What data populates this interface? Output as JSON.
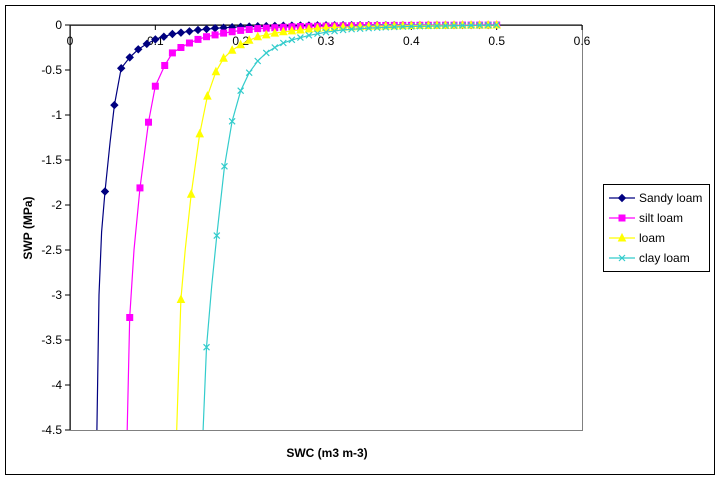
{
  "chart_data": {
    "type": "line",
    "title": "",
    "xlabel": "SWC (m3 m-3)",
    "ylabel": "SWP (MPa)",
    "xlim": [
      0,
      0.6
    ],
    "ylim": [
      -4.5,
      0
    ],
    "x_ticks": [
      "0",
      "0.1",
      "0.2",
      "0.3",
      "0.4",
      "0.5",
      "0.6"
    ],
    "y_ticks": [
      "0",
      "-0.5",
      "-1",
      "-1.5",
      "-2",
      "-2.5",
      "-3",
      "-3.5",
      "-4",
      "-4.5"
    ],
    "x_tick_values": [
      0,
      0.1,
      0.2,
      0.3,
      0.4,
      0.5,
      0.6
    ],
    "y_tick_values": [
      0,
      -0.5,
      -1,
      -1.5,
      -2,
      -2.5,
      -3,
      -3.5,
      -4,
      -4.5
    ],
    "grid": false,
    "legend_position": "right",
    "series": [
      {
        "name": "Sandy loam",
        "color": "#000080",
        "marker": "diamond",
        "curve": [
          [
            0.0315,
            -4.5
          ],
          [
            0.034,
            -3.0
          ],
          [
            0.037,
            -2.3
          ],
          [
            0.041,
            -1.85
          ],
          [
            0.047,
            -1.3
          ],
          [
            0.052,
            -0.89
          ],
          [
            0.06,
            -0.48
          ],
          [
            0.07,
            -0.36
          ],
          [
            0.08,
            -0.27
          ],
          [
            0.09,
            -0.21
          ],
          [
            0.1,
            -0.16
          ],
          [
            0.11,
            -0.13
          ],
          [
            0.12,
            -0.1
          ],
          [
            0.14,
            -0.07
          ],
          [
            0.16,
            -0.045
          ],
          [
            0.18,
            -0.03
          ],
          [
            0.2,
            -0.02
          ],
          [
            0.25,
            -0.01
          ],
          [
            0.3,
            -0.005
          ],
          [
            0.4,
            -0.002
          ],
          [
            0.5,
            0
          ]
        ],
        "markers": [
          [
            0.041,
            -1.85
          ],
          [
            0.052,
            -0.89
          ],
          [
            0.06,
            -0.48
          ],
          [
            0.07,
            -0.36
          ],
          [
            0.08,
            -0.27
          ],
          [
            0.09,
            -0.21
          ],
          [
            0.1,
            -0.16
          ],
          [
            0.11,
            -0.13
          ],
          [
            0.12,
            -0.1
          ],
          [
            0.13,
            -0.085
          ],
          [
            0.14,
            -0.07
          ],
          [
            0.15,
            -0.055
          ],
          [
            0.16,
            -0.045
          ],
          [
            0.17,
            -0.035
          ],
          [
            0.18,
            -0.03
          ],
          [
            0.19,
            -0.025
          ],
          [
            0.2,
            -0.02
          ],
          [
            0.21,
            -0.017
          ],
          [
            0.22,
            -0.014
          ],
          [
            0.23,
            -0.012
          ],
          [
            0.24,
            -0.01
          ],
          [
            0.25,
            -0.008
          ],
          [
            0.26,
            -0.007
          ],
          [
            0.27,
            -0.006
          ],
          [
            0.28,
            -0.005
          ],
          [
            0.29,
            -0.004
          ],
          [
            0.3,
            -0.003
          ],
          [
            0.31,
            -0.003
          ],
          [
            0.32,
            -0.002
          ],
          [
            0.33,
            -0.002
          ],
          [
            0.34,
            -0.002
          ],
          [
            0.35,
            -0.001
          ],
          [
            0.36,
            -0.001
          ],
          [
            0.37,
            -0.001
          ],
          [
            0.38,
            -0.001
          ],
          [
            0.39,
            -0.001
          ],
          [
            0.4,
            -0.001
          ],
          [
            0.41,
            -0.001
          ],
          [
            0.42,
            0
          ],
          [
            0.43,
            0
          ],
          [
            0.44,
            0
          ],
          [
            0.45,
            0
          ],
          [
            0.46,
            0
          ],
          [
            0.47,
            0
          ],
          [
            0.48,
            0
          ],
          [
            0.49,
            0
          ],
          [
            0.5,
            0
          ]
        ]
      },
      {
        "name": "silt loam",
        "color": "#FF00FF",
        "marker": "square",
        "curve": [
          [
            0.067,
            -4.5
          ],
          [
            0.07,
            -3.25
          ],
          [
            0.075,
            -2.5
          ],
          [
            0.082,
            -1.81
          ],
          [
            0.092,
            -1.08
          ],
          [
            0.1,
            -0.68
          ],
          [
            0.111,
            -0.45
          ],
          [
            0.12,
            -0.31
          ],
          [
            0.13,
            -0.25
          ],
          [
            0.14,
            -0.2
          ],
          [
            0.15,
            -0.16
          ],
          [
            0.16,
            -0.13
          ],
          [
            0.17,
            -0.11
          ],
          [
            0.18,
            -0.09
          ],
          [
            0.2,
            -0.06
          ],
          [
            0.22,
            -0.04
          ],
          [
            0.25,
            -0.025
          ],
          [
            0.3,
            -0.012
          ],
          [
            0.4,
            -0.004
          ],
          [
            0.5,
            0
          ]
        ],
        "markers": [
          [
            0.07,
            -3.25
          ],
          [
            0.082,
            -1.81
          ],
          [
            0.092,
            -1.08
          ],
          [
            0.1,
            -0.68
          ],
          [
            0.111,
            -0.45
          ],
          [
            0.12,
            -0.31
          ],
          [
            0.13,
            -0.25
          ],
          [
            0.14,
            -0.2
          ],
          [
            0.15,
            -0.16
          ],
          [
            0.16,
            -0.13
          ],
          [
            0.17,
            -0.11
          ],
          [
            0.18,
            -0.09
          ],
          [
            0.19,
            -0.075
          ],
          [
            0.2,
            -0.06
          ],
          [
            0.21,
            -0.05
          ],
          [
            0.22,
            -0.04
          ],
          [
            0.23,
            -0.035
          ],
          [
            0.24,
            -0.03
          ],
          [
            0.25,
            -0.025
          ],
          [
            0.26,
            -0.02
          ],
          [
            0.27,
            -0.017
          ],
          [
            0.28,
            -0.015
          ],
          [
            0.29,
            -0.013
          ],
          [
            0.3,
            -0.012
          ],
          [
            0.31,
            -0.01
          ],
          [
            0.32,
            -0.009
          ],
          [
            0.33,
            -0.008
          ],
          [
            0.34,
            -0.007
          ],
          [
            0.35,
            -0.006
          ],
          [
            0.36,
            -0.005
          ],
          [
            0.37,
            -0.005
          ],
          [
            0.38,
            -0.004
          ],
          [
            0.39,
            -0.004
          ],
          [
            0.4,
            -0.004
          ],
          [
            0.41,
            -0.003
          ],
          [
            0.42,
            -0.003
          ],
          [
            0.43,
            -0.002
          ],
          [
            0.44,
            -0.002
          ],
          [
            0.45,
            -0.002
          ],
          [
            0.46,
            -0.001
          ],
          [
            0.47,
            -0.001
          ],
          [
            0.48,
            -0.001
          ],
          [
            0.49,
            -0.001
          ],
          [
            0.5,
            0
          ]
        ]
      },
      {
        "name": "loam",
        "color": "#FFFF00",
        "marker": "triangle",
        "curve": [
          [
            0.125,
            -4.5
          ],
          [
            0.13,
            -3.05
          ],
          [
            0.135,
            -2.5
          ],
          [
            0.142,
            -1.88
          ],
          [
            0.152,
            -1.21
          ],
          [
            0.161,
            -0.79
          ],
          [
            0.171,
            -0.52
          ],
          [
            0.18,
            -0.37
          ],
          [
            0.19,
            -0.28
          ],
          [
            0.2,
            -0.22
          ],
          [
            0.21,
            -0.17
          ],
          [
            0.22,
            -0.13
          ],
          [
            0.24,
            -0.09
          ],
          [
            0.26,
            -0.065
          ],
          [
            0.28,
            -0.045
          ],
          [
            0.3,
            -0.03
          ],
          [
            0.35,
            -0.015
          ],
          [
            0.4,
            -0.007
          ],
          [
            0.5,
            0
          ]
        ],
        "markers": [
          [
            0.13,
            -3.05
          ],
          [
            0.142,
            -1.88
          ],
          [
            0.152,
            -1.21
          ],
          [
            0.161,
            -0.79
          ],
          [
            0.171,
            -0.52
          ],
          [
            0.18,
            -0.37
          ],
          [
            0.19,
            -0.28
          ],
          [
            0.2,
            -0.22
          ],
          [
            0.21,
            -0.17
          ],
          [
            0.22,
            -0.13
          ],
          [
            0.23,
            -0.11
          ],
          [
            0.24,
            -0.09
          ],
          [
            0.25,
            -0.075
          ],
          [
            0.26,
            -0.065
          ],
          [
            0.27,
            -0.055
          ],
          [
            0.28,
            -0.045
          ],
          [
            0.29,
            -0.037
          ],
          [
            0.3,
            -0.03
          ],
          [
            0.31,
            -0.027
          ],
          [
            0.32,
            -0.024
          ],
          [
            0.33,
            -0.021
          ],
          [
            0.34,
            -0.018
          ],
          [
            0.35,
            -0.015
          ],
          [
            0.36,
            -0.013
          ],
          [
            0.37,
            -0.011
          ],
          [
            0.38,
            -0.01
          ],
          [
            0.39,
            -0.008
          ],
          [
            0.4,
            -0.007
          ],
          [
            0.41,
            -0.006
          ],
          [
            0.42,
            -0.005
          ],
          [
            0.43,
            -0.004
          ],
          [
            0.44,
            -0.004
          ],
          [
            0.45,
            -0.003
          ],
          [
            0.46,
            -0.002
          ],
          [
            0.47,
            -0.002
          ],
          [
            0.48,
            -0.001
          ],
          [
            0.49,
            -0.001
          ],
          [
            0.5,
            0
          ]
        ]
      },
      {
        "name": "clay loam",
        "color": "#33CCCC",
        "marker": "x",
        "curve": [
          [
            0.156,
            -4.5
          ],
          [
            0.16,
            -3.58
          ],
          [
            0.166,
            -2.9
          ],
          [
            0.172,
            -2.34
          ],
          [
            0.181,
            -1.57
          ],
          [
            0.19,
            -1.07
          ],
          [
            0.2,
            -0.73
          ],
          [
            0.21,
            -0.53
          ],
          [
            0.22,
            -0.4
          ],
          [
            0.23,
            -0.31
          ],
          [
            0.24,
            -0.25
          ],
          [
            0.25,
            -0.2
          ],
          [
            0.26,
            -0.165
          ],
          [
            0.28,
            -0.115
          ],
          [
            0.3,
            -0.08
          ],
          [
            0.32,
            -0.055
          ],
          [
            0.35,
            -0.035
          ],
          [
            0.4,
            -0.015
          ],
          [
            0.5,
            0
          ]
        ],
        "markers": [
          [
            0.16,
            -3.58
          ],
          [
            0.172,
            -2.34
          ],
          [
            0.181,
            -1.57
          ],
          [
            0.19,
            -1.07
          ],
          [
            0.2,
            -0.73
          ],
          [
            0.21,
            -0.53
          ],
          [
            0.22,
            -0.4
          ],
          [
            0.23,
            -0.31
          ],
          [
            0.24,
            -0.25
          ],
          [
            0.25,
            -0.2
          ],
          [
            0.26,
            -0.165
          ],
          [
            0.27,
            -0.14
          ],
          [
            0.28,
            -0.115
          ],
          [
            0.29,
            -0.095
          ],
          [
            0.3,
            -0.08
          ],
          [
            0.31,
            -0.067
          ],
          [
            0.32,
            -0.055
          ],
          [
            0.33,
            -0.047
          ],
          [
            0.34,
            -0.041
          ],
          [
            0.35,
            -0.035
          ],
          [
            0.36,
            -0.03
          ],
          [
            0.37,
            -0.026
          ],
          [
            0.38,
            -0.022
          ],
          [
            0.39,
            -0.018
          ],
          [
            0.4,
            -0.015
          ],
          [
            0.41,
            -0.013
          ],
          [
            0.42,
            -0.011
          ],
          [
            0.43,
            -0.009
          ],
          [
            0.44,
            -0.008
          ],
          [
            0.45,
            -0.006
          ],
          [
            0.46,
            -0.005
          ],
          [
            0.47,
            -0.004
          ],
          [
            0.48,
            -0.003
          ],
          [
            0.49,
            -0.001
          ],
          [
            0.5,
            0
          ]
        ]
      }
    ]
  }
}
